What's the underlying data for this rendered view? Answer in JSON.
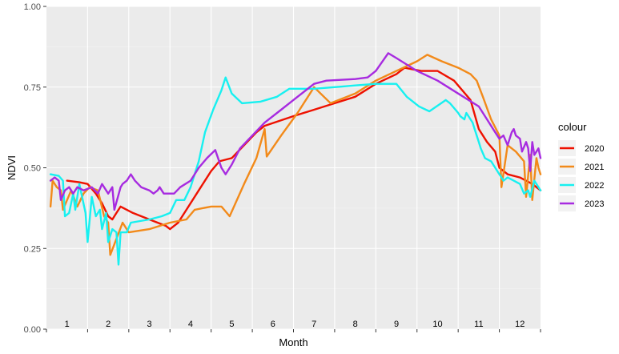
{
  "chart_data": {
    "type": "line",
    "title": "",
    "xlabel": "Month",
    "ylabel": "NDVI",
    "xlim": [
      0.5,
      12.5
    ],
    "ylim": [
      0,
      1
    ],
    "y_ticks": [
      "0.00",
      "0.25",
      "0.50",
      "0.75",
      "1.00"
    ],
    "y_tick_values": [
      0,
      0.25,
      0.5,
      0.75,
      1
    ],
    "month_labels": [
      "1",
      "2",
      "3",
      "4",
      "5",
      "6",
      "7",
      "8",
      "9",
      "10",
      "11",
      "12"
    ],
    "grid": true,
    "legend": {
      "title": "colour",
      "position": "right"
    },
    "series": [
      {
        "name": "2020",
        "color": "#ee1100",
        "points": [
          [
            1.0,
            0.46
          ],
          [
            1.3,
            0.455
          ],
          [
            1.5,
            0.45
          ],
          [
            1.7,
            0.42
          ],
          [
            1.85,
            0.39
          ],
          [
            2.0,
            0.35
          ],
          [
            2.1,
            0.34
          ],
          [
            2.2,
            0.36
          ],
          [
            2.3,
            0.38
          ],
          [
            2.6,
            0.36
          ],
          [
            3.0,
            0.34
          ],
          [
            3.4,
            0.32
          ],
          [
            3.5,
            0.31
          ],
          [
            3.7,
            0.33
          ],
          [
            3.9,
            0.37
          ],
          [
            4.2,
            0.43
          ],
          [
            4.5,
            0.49
          ],
          [
            4.7,
            0.52
          ],
          [
            5.0,
            0.53
          ],
          [
            5.3,
            0.57
          ],
          [
            5.6,
            0.61
          ],
          [
            5.8,
            0.63
          ],
          [
            6.5,
            0.66
          ],
          [
            7.0,
            0.68
          ],
          [
            7.5,
            0.7
          ],
          [
            8.0,
            0.72
          ],
          [
            8.5,
            0.76
          ],
          [
            9.0,
            0.79
          ],
          [
            9.2,
            0.81
          ],
          [
            9.6,
            0.8
          ],
          [
            10.0,
            0.8
          ],
          [
            10.4,
            0.77
          ],
          [
            10.8,
            0.71
          ],
          [
            11.0,
            0.62
          ],
          [
            11.2,
            0.58
          ],
          [
            11.4,
            0.55
          ],
          [
            11.5,
            0.5
          ],
          [
            11.7,
            0.48
          ],
          [
            12.0,
            0.47
          ],
          [
            12.3,
            0.45
          ],
          [
            12.5,
            0.43
          ]
        ]
      },
      {
        "name": "2021",
        "color": "#f28a1a",
        "points": [
          [
            0.6,
            0.38
          ],
          [
            0.65,
            0.46
          ],
          [
            0.75,
            0.44
          ],
          [
            0.85,
            0.43
          ],
          [
            0.9,
            0.37
          ],
          [
            1.1,
            0.43
          ],
          [
            1.25,
            0.38
          ],
          [
            1.4,
            0.42
          ],
          [
            1.55,
            0.44
          ],
          [
            1.75,
            0.43
          ],
          [
            1.9,
            0.35
          ],
          [
            2.0,
            0.33
          ],
          [
            2.05,
            0.23
          ],
          [
            2.2,
            0.28
          ],
          [
            2.35,
            0.33
          ],
          [
            2.5,
            0.3
          ],
          [
            3.0,
            0.31
          ],
          [
            3.5,
            0.33
          ],
          [
            3.9,
            0.34
          ],
          [
            4.1,
            0.37
          ],
          [
            4.5,
            0.38
          ],
          [
            4.75,
            0.38
          ],
          [
            4.95,
            0.35
          ],
          [
            5.3,
            0.45
          ],
          [
            5.6,
            0.53
          ],
          [
            5.8,
            0.62
          ],
          [
            5.85,
            0.535
          ],
          [
            6.2,
            0.6
          ],
          [
            6.6,
            0.67
          ],
          [
            7.0,
            0.75
          ],
          [
            7.4,
            0.7
          ],
          [
            8.0,
            0.73
          ],
          [
            8.5,
            0.77
          ],
          [
            9.0,
            0.8
          ],
          [
            9.5,
            0.83
          ],
          [
            9.75,
            0.85
          ],
          [
            10.1,
            0.83
          ],
          [
            10.5,
            0.81
          ],
          [
            10.8,
            0.79
          ],
          [
            10.95,
            0.77
          ],
          [
            11.1,
            0.72
          ],
          [
            11.3,
            0.65
          ],
          [
            11.5,
            0.6
          ],
          [
            11.55,
            0.44
          ],
          [
            11.7,
            0.57
          ],
          [
            11.9,
            0.55
          ],
          [
            12.1,
            0.52
          ],
          [
            12.15,
            0.41
          ],
          [
            12.25,
            0.54
          ],
          [
            12.3,
            0.4
          ],
          [
            12.4,
            0.53
          ],
          [
            12.45,
            0.5
          ],
          [
            12.5,
            0.48
          ]
        ]
      },
      {
        "name": "2022",
        "color": "#18f0f0",
        "points": [
          [
            0.6,
            0.48
          ],
          [
            0.8,
            0.475
          ],
          [
            0.9,
            0.46
          ],
          [
            0.95,
            0.35
          ],
          [
            1.05,
            0.36
          ],
          [
            1.15,
            0.42
          ],
          [
            1.2,
            0.37
          ],
          [
            1.3,
            0.45
          ],
          [
            1.45,
            0.36
          ],
          [
            1.5,
            0.27
          ],
          [
            1.6,
            0.41
          ],
          [
            1.7,
            0.35
          ],
          [
            1.8,
            0.37
          ],
          [
            1.85,
            0.31
          ],
          [
            1.95,
            0.36
          ],
          [
            2.0,
            0.27
          ],
          [
            2.1,
            0.31
          ],
          [
            2.2,
            0.3
          ],
          [
            2.25,
            0.2
          ],
          [
            2.3,
            0.3
          ],
          [
            2.45,
            0.3
          ],
          [
            2.55,
            0.33
          ],
          [
            3.0,
            0.34
          ],
          [
            3.3,
            0.35
          ],
          [
            3.5,
            0.36
          ],
          [
            3.65,
            0.4
          ],
          [
            3.85,
            0.4
          ],
          [
            4.0,
            0.44
          ],
          [
            4.2,
            0.52
          ],
          [
            4.35,
            0.61
          ],
          [
            4.55,
            0.68
          ],
          [
            4.75,
            0.74
          ],
          [
            4.85,
            0.78
          ],
          [
            5.0,
            0.73
          ],
          [
            5.25,
            0.7
          ],
          [
            5.7,
            0.705
          ],
          [
            6.1,
            0.72
          ],
          [
            6.4,
            0.745
          ],
          [
            7.0,
            0.745
          ],
          [
            7.5,
            0.75
          ],
          [
            8.0,
            0.755
          ],
          [
            8.5,
            0.76
          ],
          [
            9.0,
            0.76
          ],
          [
            9.25,
            0.72
          ],
          [
            9.55,
            0.69
          ],
          [
            9.8,
            0.675
          ],
          [
            10.2,
            0.71
          ],
          [
            10.3,
            0.7
          ],
          [
            10.5,
            0.67
          ],
          [
            10.55,
            0.66
          ],
          [
            10.65,
            0.65
          ],
          [
            10.7,
            0.67
          ],
          [
            10.85,
            0.64
          ],
          [
            10.9,
            0.62
          ],
          [
            11.0,
            0.58
          ],
          [
            11.05,
            0.56
          ],
          [
            11.15,
            0.53
          ],
          [
            11.3,
            0.52
          ],
          [
            11.5,
            0.48
          ],
          [
            11.6,
            0.46
          ],
          [
            11.7,
            0.47
          ],
          [
            11.85,
            0.46
          ],
          [
            12.0,
            0.45
          ],
          [
            12.1,
            0.42
          ],
          [
            12.2,
            0.43
          ],
          [
            12.25,
            0.41
          ],
          [
            12.35,
            0.46
          ],
          [
            12.45,
            0.44
          ],
          [
            12.5,
            0.43
          ]
        ]
      },
      {
        "name": "2023",
        "color": "#a72be0",
        "points": [
          [
            0.6,
            0.46
          ],
          [
            0.7,
            0.47
          ],
          [
            0.8,
            0.46
          ],
          [
            0.85,
            0.4
          ],
          [
            0.95,
            0.43
          ],
          [
            1.05,
            0.44
          ],
          [
            1.15,
            0.42
          ],
          [
            1.25,
            0.44
          ],
          [
            1.4,
            0.43
          ],
          [
            1.6,
            0.44
          ],
          [
            1.75,
            0.42
          ],
          [
            1.85,
            0.45
          ],
          [
            2.0,
            0.42
          ],
          [
            2.1,
            0.44
          ],
          [
            2.15,
            0.37
          ],
          [
            2.3,
            0.44
          ],
          [
            2.35,
            0.45
          ],
          [
            2.45,
            0.46
          ],
          [
            2.55,
            0.48
          ],
          [
            2.65,
            0.46
          ],
          [
            2.8,
            0.44
          ],
          [
            3.0,
            0.43
          ],
          [
            3.1,
            0.42
          ],
          [
            3.2,
            0.43
          ],
          [
            3.25,
            0.44
          ],
          [
            3.35,
            0.42
          ],
          [
            3.6,
            0.42
          ],
          [
            3.75,
            0.44
          ],
          [
            4.0,
            0.46
          ],
          [
            4.2,
            0.5
          ],
          [
            4.4,
            0.53
          ],
          [
            4.6,
            0.555
          ],
          [
            4.75,
            0.5
          ],
          [
            4.85,
            0.48
          ],
          [
            5.0,
            0.51
          ],
          [
            5.2,
            0.56
          ],
          [
            5.5,
            0.6
          ],
          [
            5.8,
            0.64
          ],
          [
            6.2,
            0.68
          ],
          [
            6.6,
            0.72
          ],
          [
            7.0,
            0.76
          ],
          [
            7.3,
            0.77
          ],
          [
            8.0,
            0.775
          ],
          [
            8.3,
            0.78
          ],
          [
            8.5,
            0.8
          ],
          [
            8.8,
            0.855
          ],
          [
            9.0,
            0.84
          ],
          [
            9.5,
            0.8
          ],
          [
            10.0,
            0.77
          ],
          [
            10.5,
            0.73
          ],
          [
            11.0,
            0.69
          ],
          [
            11.2,
            0.65
          ],
          [
            11.4,
            0.61
          ],
          [
            11.5,
            0.59
          ],
          [
            11.6,
            0.6
          ],
          [
            11.7,
            0.57
          ],
          [
            11.8,
            0.61
          ],
          [
            11.85,
            0.62
          ],
          [
            11.9,
            0.6
          ],
          [
            12.0,
            0.59
          ],
          [
            12.05,
            0.55
          ],
          [
            12.15,
            0.58
          ],
          [
            12.2,
            0.56
          ],
          [
            12.25,
            0.49
          ],
          [
            12.3,
            0.58
          ],
          [
            12.35,
            0.54
          ],
          [
            12.45,
            0.56
          ],
          [
            12.5,
            0.53
          ]
        ]
      }
    ]
  }
}
